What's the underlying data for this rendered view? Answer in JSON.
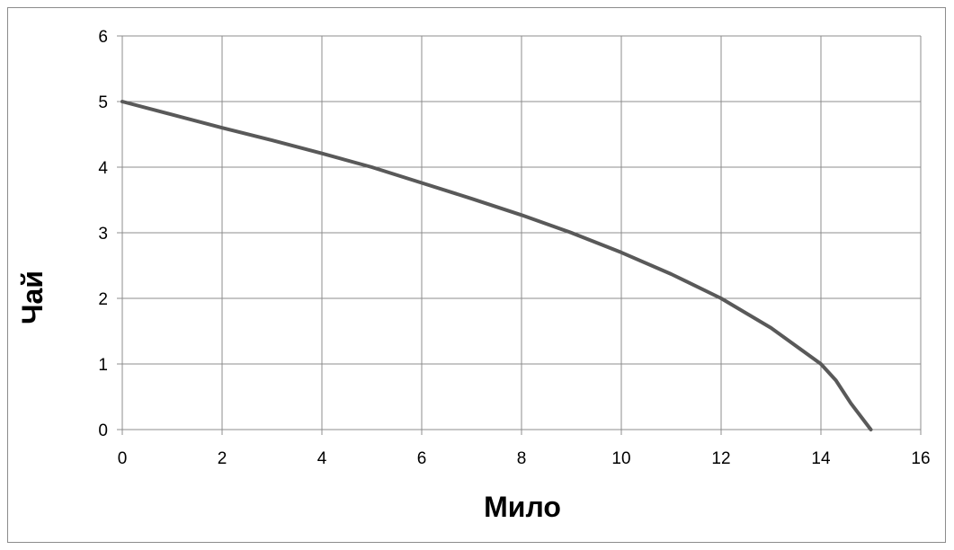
{
  "chart_data": {
    "type": "line",
    "title": "",
    "xlabel": "Мило",
    "ylabel": "Чай",
    "xlim": [
      0,
      16
    ],
    "ylim": [
      0,
      6
    ],
    "xticks": [
      0,
      2,
      4,
      6,
      8,
      10,
      12,
      14,
      16
    ],
    "yticks": [
      0,
      1,
      2,
      3,
      4,
      5,
      6
    ],
    "grid": true,
    "legend": "none",
    "series": [
      {
        "color": "#595959",
        "x": [
          0,
          1,
          2,
          3,
          4,
          5,
          6,
          7,
          8,
          9,
          10,
          11,
          12,
          13,
          14,
          14.3,
          14.6,
          15
        ],
        "y": [
          5,
          4.8,
          4.6,
          4.41,
          4.21,
          4.0,
          3.76,
          3.52,
          3.27,
          3.0,
          2.7,
          2.37,
          2.0,
          1.55,
          1.0,
          0.75,
          0.4,
          0
        ]
      }
    ]
  }
}
